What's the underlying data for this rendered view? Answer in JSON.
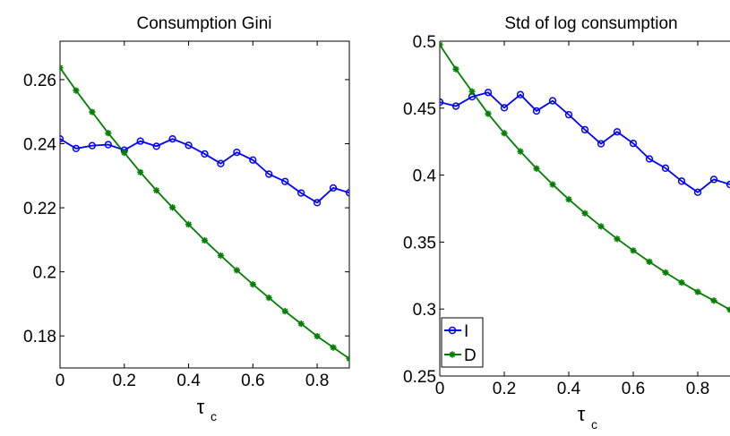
{
  "chart_data": [
    {
      "type": "line",
      "title": "Consumption Gini",
      "xlabel_main": "τ",
      "xlabel_sub": "c",
      "xlim": [
        0,
        0.9
      ],
      "ylim": [
        0.17,
        0.272
      ],
      "xticks": [
        0,
        0.2,
        0.4,
        0.6,
        0.8
      ],
      "xtick_labels": [
        "0",
        "0.2",
        "0.4",
        "0.6",
        "0.8"
      ],
      "yticks": [
        0.18,
        0.2,
        0.22,
        0.24,
        0.26
      ],
      "ytick_labels": [
        "0.18",
        "0.2",
        "0.22",
        "0.24",
        "0.26"
      ],
      "x": [
        0,
        0.05,
        0.1,
        0.15,
        0.2,
        0.25,
        0.3,
        0.35,
        0.4,
        0.45,
        0.5,
        0.55,
        0.6,
        0.65,
        0.7,
        0.75,
        0.8,
        0.85,
        0.9
      ],
      "series": [
        {
          "name": "I",
          "color": "#0000ff",
          "marker": "circle",
          "values": [
            0.2415,
            0.2385,
            0.2394,
            0.2397,
            0.238,
            0.2408,
            0.2392,
            0.2415,
            0.2395,
            0.2368,
            0.2338,
            0.2373,
            0.2349,
            0.2305,
            0.2282,
            0.2246,
            0.2216,
            0.2262,
            0.2247
          ]
        },
        {
          "name": "D",
          "color": "#007f00",
          "marker": "star",
          "values": [
            0.2637,
            0.2566,
            0.2499,
            0.2433,
            0.2372,
            0.2311,
            0.2254,
            0.2201,
            0.2148,
            0.2098,
            0.2051,
            0.2005,
            0.1961,
            0.1919,
            0.1877,
            0.1838,
            0.1799,
            0.1764,
            0.1729
          ]
        }
      ]
    },
    {
      "type": "line",
      "title": "Std of log consumption",
      "xlabel_main": "τ",
      "xlabel_sub": "c",
      "xlim": [
        0,
        0.9
      ],
      "ylim": [
        0.25,
        0.5
      ],
      "xticks": [
        0,
        0.2,
        0.4,
        0.6,
        0.8
      ],
      "xtick_labels": [
        "0",
        "0.2",
        "0.4",
        "0.6",
        "0.8"
      ],
      "yticks": [
        0.25,
        0.3,
        0.35,
        0.4,
        0.45,
        0.5
      ],
      "ytick_labels": [
        "0.25",
        "0.3",
        "0.35",
        "0.4",
        "0.45",
        "0.5"
      ],
      "x": [
        0,
        0.05,
        0.1,
        0.15,
        0.2,
        0.25,
        0.3,
        0.35,
        0.4,
        0.45,
        0.5,
        0.55,
        0.6,
        0.65,
        0.7,
        0.75,
        0.8,
        0.85,
        0.9
      ],
      "legend": {
        "placement": "bottom-left",
        "entries": [
          "I",
          "D"
        ]
      },
      "series": [
        {
          "name": "I",
          "color": "#0000ff",
          "marker": "circle",
          "values": [
            0.4545,
            0.4515,
            0.4585,
            0.4617,
            0.4503,
            0.4601,
            0.4479,
            0.4555,
            0.4451,
            0.4339,
            0.4234,
            0.4323,
            0.4237,
            0.4121,
            0.4052,
            0.3955,
            0.3872,
            0.3968,
            0.393
          ]
        },
        {
          "name": "D",
          "color": "#007f00",
          "marker": "star",
          "values": [
            0.4973,
            0.4791,
            0.4624,
            0.4458,
            0.4313,
            0.4177,
            0.4049,
            0.393,
            0.3819,
            0.3715,
            0.3617,
            0.3524,
            0.3437,
            0.3353,
            0.3273,
            0.3198,
            0.3128,
            0.3063,
            0.2995
          ]
        }
      ]
    }
  ]
}
